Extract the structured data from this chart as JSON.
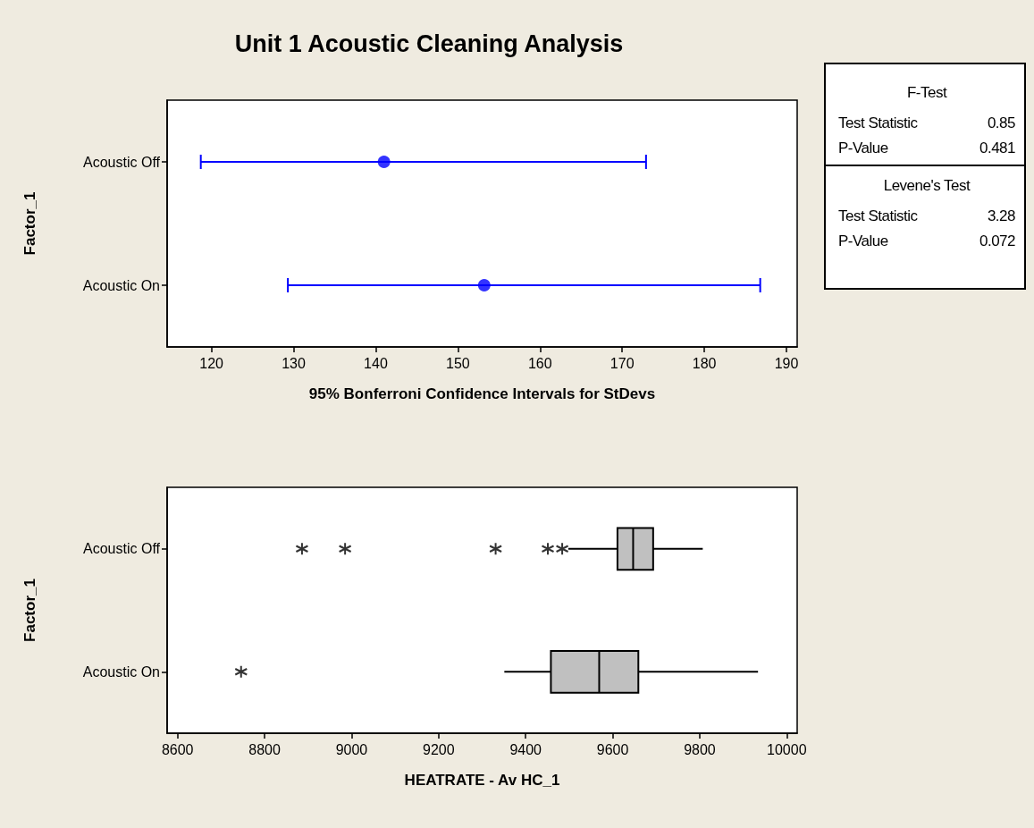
{
  "chart_data": [
    {
      "type": "scatter",
      "orientation": "horizontal",
      "title": "Unit 1 Acoustic Cleaning Analysis",
      "xlabel": "95% Bonferroni Confidence Intervals for StDevs",
      "ylabel": "Factor_1",
      "categories": [
        "Acoustic Off",
        "Acoustic On"
      ],
      "values": [
        141.0,
        153.2
      ],
      "errors": [
        [
          118.7,
          172.9
        ],
        [
          129.3,
          186.8
        ]
      ],
      "color": "#0000ff",
      "marker": "circle",
      "xlim": [
        114.6,
        191.3
      ],
      "xticks": [
        120,
        130,
        140,
        150,
        160,
        170,
        180,
        190
      ]
    },
    {
      "type": "box",
      "orientation": "horizontal",
      "xlabel": "HEATRATE - Av HC_1",
      "ylabel": "Factor_1",
      "categories": [
        "Acoustic Off",
        "Acoustic On"
      ],
      "color": "#c0c0c0",
      "boxes": [
        {
          "low": 9498,
          "q1": 9611,
          "median": 9647,
          "q3": 9693,
          "high": 9807,
          "outliers": [
            8886,
            8985,
            9331,
            9451,
            9484
          ]
        },
        {
          "low": 9351,
          "q1": 9458,
          "median": 9569,
          "q3": 9659,
          "high": 9934,
          "outliers": [
            8746
          ]
        }
      ],
      "xlim": [
        8576,
        10024
      ],
      "xticks": [
        8600,
        8800,
        9000,
        9200,
        9400,
        9600,
        9800,
        10000
      ]
    },
    {
      "type": "other",
      "annotations": [
        "F-Test",
        "Test Statistic",
        "0.85",
        "P-Value",
        "0.481",
        "Levene's Test",
        "Test Statistic",
        "3.28",
        "P-Value",
        "0.072"
      ]
    }
  ]
}
